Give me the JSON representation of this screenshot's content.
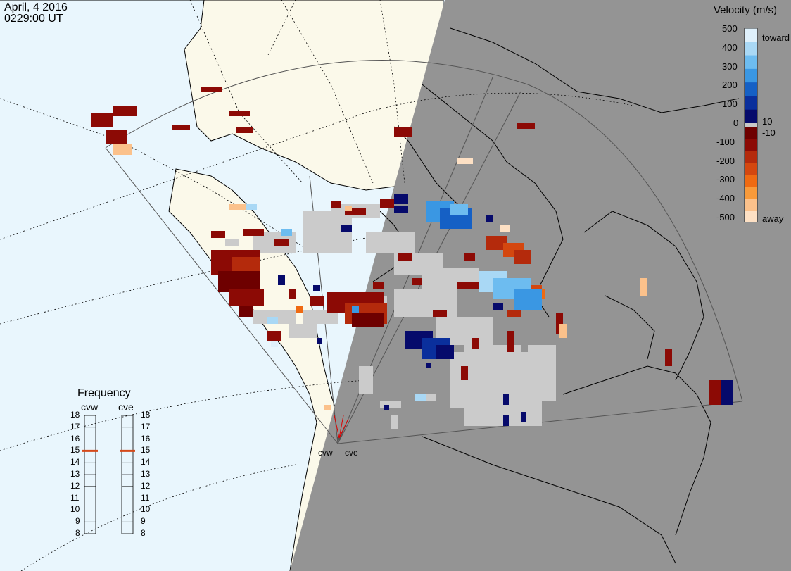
{
  "header": {
    "date": "April, 4 2016",
    "time": "0229:00 UT"
  },
  "velocity_scale": {
    "title": "Velocity (m/s)",
    "tick_labels": [
      "500",
      "400",
      "300",
      "200",
      "100",
      "0",
      "-100",
      "-200",
      "-300",
      "-400",
      "-500"
    ],
    "inner_labels": [
      "10",
      "-10"
    ],
    "end_labels": [
      "toward",
      "away"
    ],
    "colors_toward": [
      "#dff0fb",
      "#a9d8f5",
      "#6dbcf0",
      "#3a97e3",
      "#1560c5",
      "#0a2f9c",
      "#060a6b"
    ],
    "colors_away": [
      "#6e0000",
      "#8c0a05",
      "#b42a0c",
      "#d4470f",
      "#ef6a12",
      "#f89a3a",
      "#fbc18b",
      "#fde0c4"
    ],
    "zero_color": "#c8c8c8"
  },
  "frequency_panel": {
    "title": "Frequency",
    "radars": [
      {
        "name": "cvw",
        "frequency_mhz": 15
      },
      {
        "name": "cve",
        "frequency_mhz": 15
      }
    ],
    "ticks": [
      "18",
      "17",
      "16",
      "15",
      "14",
      "13",
      "12",
      "11",
      "10",
      "9",
      "8"
    ]
  },
  "radar_sites": [
    "cvw",
    "cve"
  ],
  "colors": {
    "ocean": "#e9f6fd",
    "land": "#fbf9ea",
    "night": "#949494",
    "ground_scatter": "#cbcbcb",
    "marker": "#d54a1b"
  }
}
